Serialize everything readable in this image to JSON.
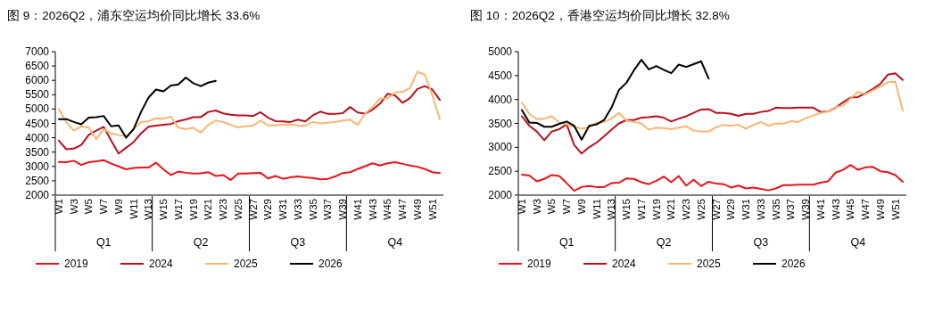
{
  "chart_data": [
    {
      "type": "line",
      "title": "图 9：2026Q2，浦东空运均价同比增长 33.6%",
      "categories": [
        "W1",
        null,
        "W3",
        null,
        "W5",
        null,
        "W7",
        null,
        "W9",
        null,
        "W11",
        null,
        "W13",
        null,
        "W15",
        null,
        "W17",
        null,
        "W19",
        null,
        "W21",
        null,
        "W23",
        null,
        "W25",
        null,
        "W27",
        null,
        "W29",
        null,
        "W31",
        null,
        "W33",
        null,
        "W35",
        null,
        "W37",
        null,
        "W39",
        null,
        "W41",
        null,
        "W43",
        null,
        "W45",
        null,
        "W47",
        null,
        "W49",
        null,
        "W51",
        null
      ],
      "ylim": [
        2000,
        7000
      ],
      "yticks": [
        2000,
        2500,
        3000,
        3500,
        4000,
        4500,
        5000,
        5500,
        6000,
        6500,
        7000
      ],
      "legend": "bottom",
      "annotations": [
        "Q1",
        "Q2",
        "Q3",
        "Q4"
      ],
      "series": [
        {
          "name": "2019",
          "color": "#e8141b",
          "values": [
            3160,
            3150,
            3200,
            3050,
            3150,
            3180,
            3220,
            3100,
            3000,
            2900,
            2950,
            2960,
            2960,
            3130,
            2900,
            2700,
            2820,
            2780,
            2750,
            2760,
            2800,
            2670,
            2700,
            2530,
            2750,
            2750,
            2770,
            2780,
            2580,
            2670,
            2570,
            2620,
            2650,
            2620,
            2600,
            2550,
            2570,
            2650,
            2770,
            2800,
            2910,
            3010,
            3110,
            3030,
            3110,
            3150,
            3090,
            3030,
            2990,
            2910,
            2800,
            2770
          ]
        },
        {
          "name": "2024",
          "color": "#b8101f",
          "values": [
            3900,
            3600,
            3620,
            3750,
            4100,
            4250,
            4380,
            3900,
            3450,
            3650,
            3850,
            4150,
            4380,
            4420,
            4450,
            4480,
            4580,
            4640,
            4720,
            4720,
            4900,
            4950,
            4850,
            4800,
            4780,
            4780,
            4760,
            4890,
            4700,
            4580,
            4570,
            4550,
            4630,
            4570,
            4780,
            4910,
            4830,
            4830,
            4860,
            5070,
            4880,
            4840,
            4980,
            5190,
            5530,
            5480,
            5220,
            5380,
            5700,
            5800,
            5680,
            5320
          ]
        },
        {
          "name": "2025",
          "color": "#f9b572",
          "values": [
            5000,
            4550,
            4250,
            4400,
            4350,
            3950,
            4300,
            4150,
            4100,
            4050,
            4300,
            4550,
            4580,
            4680,
            4660,
            4740,
            4350,
            4300,
            4350,
            4180,
            4450,
            4600,
            4550,
            4450,
            4360,
            4400,
            4420,
            4600,
            4430,
            4430,
            4450,
            4470,
            4430,
            4420,
            4550,
            4500,
            4530,
            4550,
            4600,
            4630,
            4450,
            4840,
            5070,
            5370,
            5370,
            5580,
            5600,
            5730,
            6300,
            6200,
            5480,
            4650
          ]
        },
        {
          "name": "2026",
          "color": "#000000",
          "values": [
            4650,
            4650,
            4550,
            4470,
            4700,
            4720,
            4760,
            4400,
            4430,
            4000,
            4300,
            4900,
            5400,
            5680,
            5620,
            5820,
            5860,
            6100,
            5900,
            5800,
            5920,
            5980,
            null,
            null,
            null,
            null,
            null,
            null,
            null,
            null,
            null,
            null,
            null,
            null,
            null,
            null,
            null,
            null,
            null,
            null,
            null,
            null,
            null,
            null,
            null,
            null,
            null,
            null,
            null,
            null,
            null,
            null
          ]
        }
      ]
    },
    {
      "type": "line",
      "title": "图 10：2026Q2，香港空运均价同比增长 32.8%",
      "categories": [
        "W1",
        null,
        "W3",
        null,
        "W5",
        null,
        "W7",
        null,
        "W9",
        null,
        "W11",
        null,
        "W13",
        null,
        "W15",
        null,
        "W17",
        null,
        "W19",
        null,
        "W21",
        null,
        "W23",
        null,
        "W25",
        null,
        "W27",
        null,
        "W29",
        null,
        "W31",
        null,
        "W33",
        null,
        "W35",
        null,
        "W37",
        null,
        "W39",
        null,
        "W41",
        null,
        "W43",
        null,
        "W45",
        null,
        "W47",
        null,
        "W49",
        null,
        "W51",
        null
      ],
      "ylim": [
        2000,
        5000
      ],
      "yticks": [
        2000,
        2500,
        3000,
        3500,
        4000,
        4500,
        5000
      ],
      "legend": "bottom",
      "annotations": [
        "Q1",
        "Q2",
        "Q3",
        "Q4"
      ],
      "series": [
        {
          "name": "2019",
          "color": "#e8141b",
          "values": [
            2430,
            2410,
            2290,
            2340,
            2420,
            2400,
            2250,
            2090,
            2170,
            2190,
            2170,
            2170,
            2250,
            2260,
            2350,
            2340,
            2270,
            2230,
            2300,
            2390,
            2270,
            2400,
            2200,
            2320,
            2190,
            2280,
            2240,
            2230,
            2160,
            2200,
            2140,
            2160,
            2130,
            2100,
            2140,
            2210,
            2210,
            2220,
            2220,
            2220,
            2260,
            2290,
            2470,
            2530,
            2630,
            2530,
            2580,
            2590,
            2500,
            2480,
            2420,
            2280
          ]
        },
        {
          "name": "2024",
          "color": "#b8101f",
          "values": [
            3650,
            3450,
            3330,
            3150,
            3330,
            3380,
            3480,
            3050,
            2870,
            3000,
            3100,
            3230,
            3370,
            3500,
            3570,
            3570,
            3620,
            3630,
            3650,
            3620,
            3540,
            3600,
            3650,
            3720,
            3790,
            3800,
            3720,
            3720,
            3700,
            3660,
            3700,
            3700,
            3740,
            3760,
            3830,
            3820,
            3820,
            3830,
            3830,
            3830,
            3740,
            3750,
            3830,
            3940,
            4040,
            4050,
            4130,
            4220,
            4330,
            4520,
            4550,
            4410
          ]
        },
        {
          "name": "2025",
          "color": "#f9b572",
          "values": [
            3930,
            3700,
            3590,
            3600,
            3650,
            3520,
            3480,
            3430,
            3390,
            3420,
            3510,
            3530,
            3600,
            3720,
            3560,
            3530,
            3500,
            3370,
            3410,
            3400,
            3380,
            3410,
            3440,
            3350,
            3330,
            3330,
            3420,
            3470,
            3450,
            3470,
            3390,
            3470,
            3530,
            3450,
            3500,
            3490,
            3550,
            3530,
            3610,
            3660,
            3720,
            3750,
            3840,
            3870,
            4020,
            4160,
            4110,
            4190,
            4270,
            4360,
            4370,
            3770
          ]
        },
        {
          "name": "2026",
          "color": "#000000",
          "values": [
            3780,
            3520,
            3510,
            3430,
            3430,
            3490,
            3540,
            3450,
            3160,
            3450,
            3480,
            3570,
            3830,
            4200,
            4350,
            4610,
            4830,
            4630,
            4700,
            4620,
            4550,
            4730,
            4680,
            4740,
            4800,
            4440,
            null,
            null,
            null,
            null,
            null,
            null,
            null,
            null,
            null,
            null,
            null,
            null,
            null,
            null,
            null,
            null,
            null,
            null,
            null,
            null,
            null,
            null,
            null,
            null,
            null,
            null
          ]
        }
      ]
    }
  ]
}
